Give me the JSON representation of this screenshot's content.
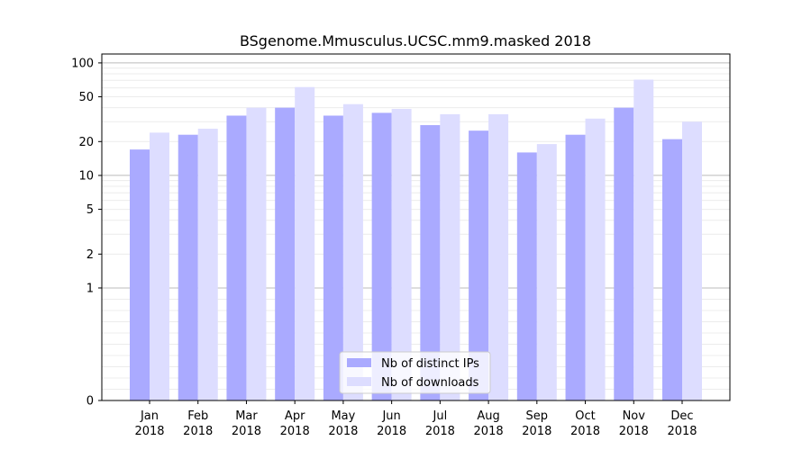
{
  "chart_data": {
    "type": "bar",
    "title": "BSgenome.Mmusculus.UCSC.mm9.masked 2018",
    "xlabel": "",
    "ylabel": "",
    "scale": "symlog",
    "ylim": [
      0,
      120
    ],
    "y_ticks": [
      0,
      1,
      2,
      5,
      10,
      20,
      50,
      100
    ],
    "categories": [
      {
        "month": "Jan",
        "year": "2018"
      },
      {
        "month": "Feb",
        "year": "2018"
      },
      {
        "month": "Mar",
        "year": "2018"
      },
      {
        "month": "Apr",
        "year": "2018"
      },
      {
        "month": "May",
        "year": "2018"
      },
      {
        "month": "Jun",
        "year": "2018"
      },
      {
        "month": "Jul",
        "year": "2018"
      },
      {
        "month": "Aug",
        "year": "2018"
      },
      {
        "month": "Sep",
        "year": "2018"
      },
      {
        "month": "Oct",
        "year": "2018"
      },
      {
        "month": "Nov",
        "year": "2018"
      },
      {
        "month": "Dec",
        "year": "2018"
      }
    ],
    "series": [
      {
        "name": "Nb of distinct IPs",
        "color": "#aaaaff",
        "values": [
          17,
          23,
          34,
          40,
          34,
          36,
          28,
          25,
          16,
          23,
          40,
          21
        ]
      },
      {
        "name": "Nb of downloads",
        "color": "#ddddff",
        "values": [
          24,
          26,
          40,
          61,
          43,
          39,
          35,
          35,
          19,
          32,
          71,
          30
        ]
      }
    ],
    "grid": true,
    "legend_position": "bottom-center"
  }
}
